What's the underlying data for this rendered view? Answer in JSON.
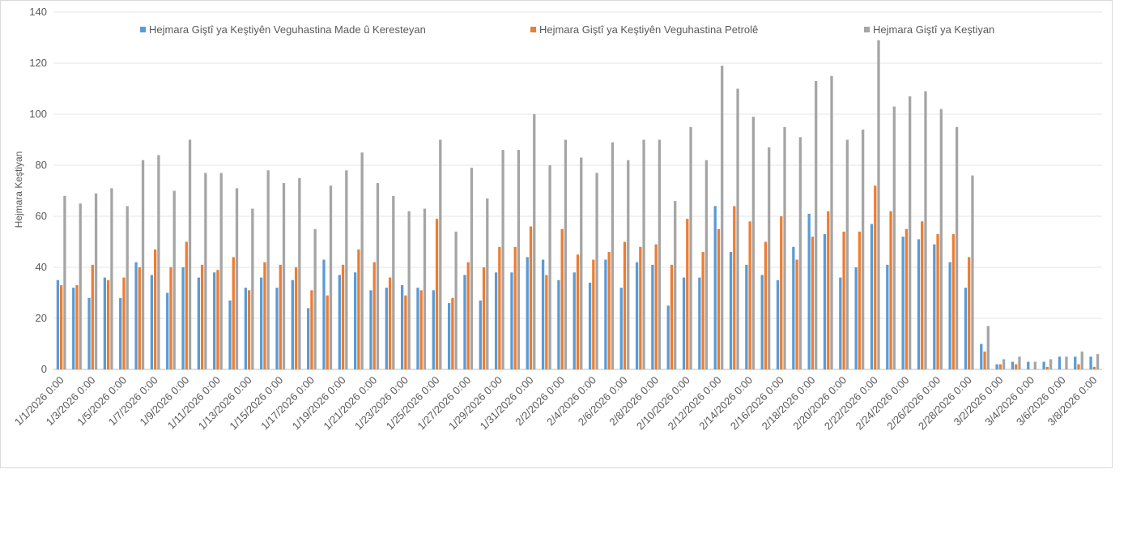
{
  "chart_data": {
    "type": "bar",
    "title": "",
    "xlabel": "",
    "ylabel": "Hejmara Keştiyan",
    "ylim": [
      0,
      140
    ],
    "yticks": [
      0,
      20,
      40,
      60,
      80,
      100,
      120,
      140
    ],
    "grid": true,
    "legend_position": "top",
    "categories": [
      "1/1/2026 0:00",
      "1/2/2026 0:00",
      "1/3/2026 0:00",
      "1/4/2026 0:00",
      "1/5/2026 0:00",
      "1/6/2026 0:00",
      "1/7/2026 0:00",
      "1/8/2026 0:00",
      "1/9/2026 0:00",
      "1/10/2026 0:00",
      "1/11/2026 0:00",
      "1/12/2026 0:00",
      "1/13/2026 0:00",
      "1/14/2026 0:00",
      "1/15/2026 0:00",
      "1/16/2026 0:00",
      "1/17/2026 0:00",
      "1/18/2026 0:00",
      "1/19/2026 0:00",
      "1/20/2026 0:00",
      "1/21/2026 0:00",
      "1/22/2026 0:00",
      "1/23/2026 0:00",
      "1/24/2026 0:00",
      "1/25/2026 0:00",
      "1/26/2026 0:00",
      "1/27/2026 0:00",
      "1/28/2026 0:00",
      "1/29/2026 0:00",
      "1/30/2026 0:00",
      "1/31/2026 0:00",
      "2/1/2026 0:00",
      "2/2/2026 0:00",
      "2/3/2026 0:00",
      "2/4/2026 0:00",
      "2/5/2026 0:00",
      "2/6/2026 0:00",
      "2/7/2026 0:00",
      "2/8/2026 0:00",
      "2/9/2026 0:00",
      "2/10/2026 0:00",
      "2/11/2026 0:00",
      "2/12/2026 0:00",
      "2/13/2026 0:00",
      "2/14/2026 0:00",
      "2/15/2026 0:00",
      "2/16/2026 0:00",
      "2/17/2026 0:00",
      "2/18/2026 0:00",
      "2/19/2026 0:00",
      "2/20/2026 0:00",
      "2/21/2026 0:00",
      "2/22/2026 0:00",
      "2/23/2026 0:00",
      "2/24/2026 0:00",
      "2/25/2026 0:00",
      "2/26/2026 0:00",
      "2/27/2026 0:00",
      "2/28/2026 0:00",
      "3/1/2026 0:00",
      "3/2/2026 0:00",
      "3/3/2026 0:00",
      "3/4/2026 0:00",
      "3/5/2026 0:00",
      "3/6/2026 0:00",
      "3/7/2026 0:00",
      "3/8/2026 0:00"
    ],
    "label_every": 2,
    "series": [
      {
        "name": "Hejmara Giştî ya Keştiyên Veguhastina Made û Keresteyan",
        "color": "#5b9bd5",
        "values": [
          35,
          32,
          28,
          36,
          28,
          42,
          37,
          30,
          40,
          36,
          38,
          27,
          32,
          36,
          32,
          35,
          24,
          43,
          37,
          38,
          31,
          32,
          33,
          32,
          31,
          26,
          37,
          27,
          38,
          38,
          44,
          43,
          35,
          38,
          34,
          43,
          32,
          42,
          41,
          25,
          36,
          36,
          64,
          46,
          41,
          37,
          35,
          48,
          61,
          53,
          36,
          40,
          57,
          41,
          52,
          51,
          49,
          42,
          32,
          10,
          2,
          3,
          3,
          3,
          5,
          5,
          5
        ]
      },
      {
        "name": "Hejmara Giştî ya Keştiyên Veguhastina Petrolê",
        "color": "#ed7d31",
        "values": [
          33,
          33,
          41,
          35,
          36,
          40,
          47,
          40,
          50,
          41,
          39,
          44,
          31,
          42,
          41,
          40,
          31,
          29,
          41,
          47,
          42,
          36,
          29,
          31,
          59,
          28,
          42,
          40,
          48,
          48,
          56,
          37,
          55,
          45,
          43,
          46,
          50,
          48,
          49,
          41,
          59,
          46,
          55,
          64,
          58,
          50,
          60,
          43,
          52,
          62,
          54,
          54,
          72,
          62,
          55,
          58,
          53,
          53,
          44,
          7,
          2,
          2,
          0,
          1,
          0,
          2,
          1
        ]
      },
      {
        "name": "Hejmara Giştî ya Keştiyan",
        "color": "#a5a5a5",
        "values": [
          68,
          65,
          69,
          71,
          64,
          82,
          84,
          70,
          90,
          77,
          77,
          71,
          63,
          78,
          73,
          75,
          55,
          72,
          78,
          85,
          73,
          68,
          62,
          63,
          90,
          54,
          79,
          67,
          86,
          86,
          100,
          80,
          90,
          83,
          77,
          89,
          82,
          90,
          90,
          66,
          95,
          82,
          119,
          110,
          99,
          87,
          95,
          91,
          113,
          115,
          90,
          94,
          129,
          103,
          107,
          109,
          102,
          95,
          76,
          17,
          4,
          5,
          3,
          4,
          5,
          7,
          6
        ]
      }
    ]
  }
}
